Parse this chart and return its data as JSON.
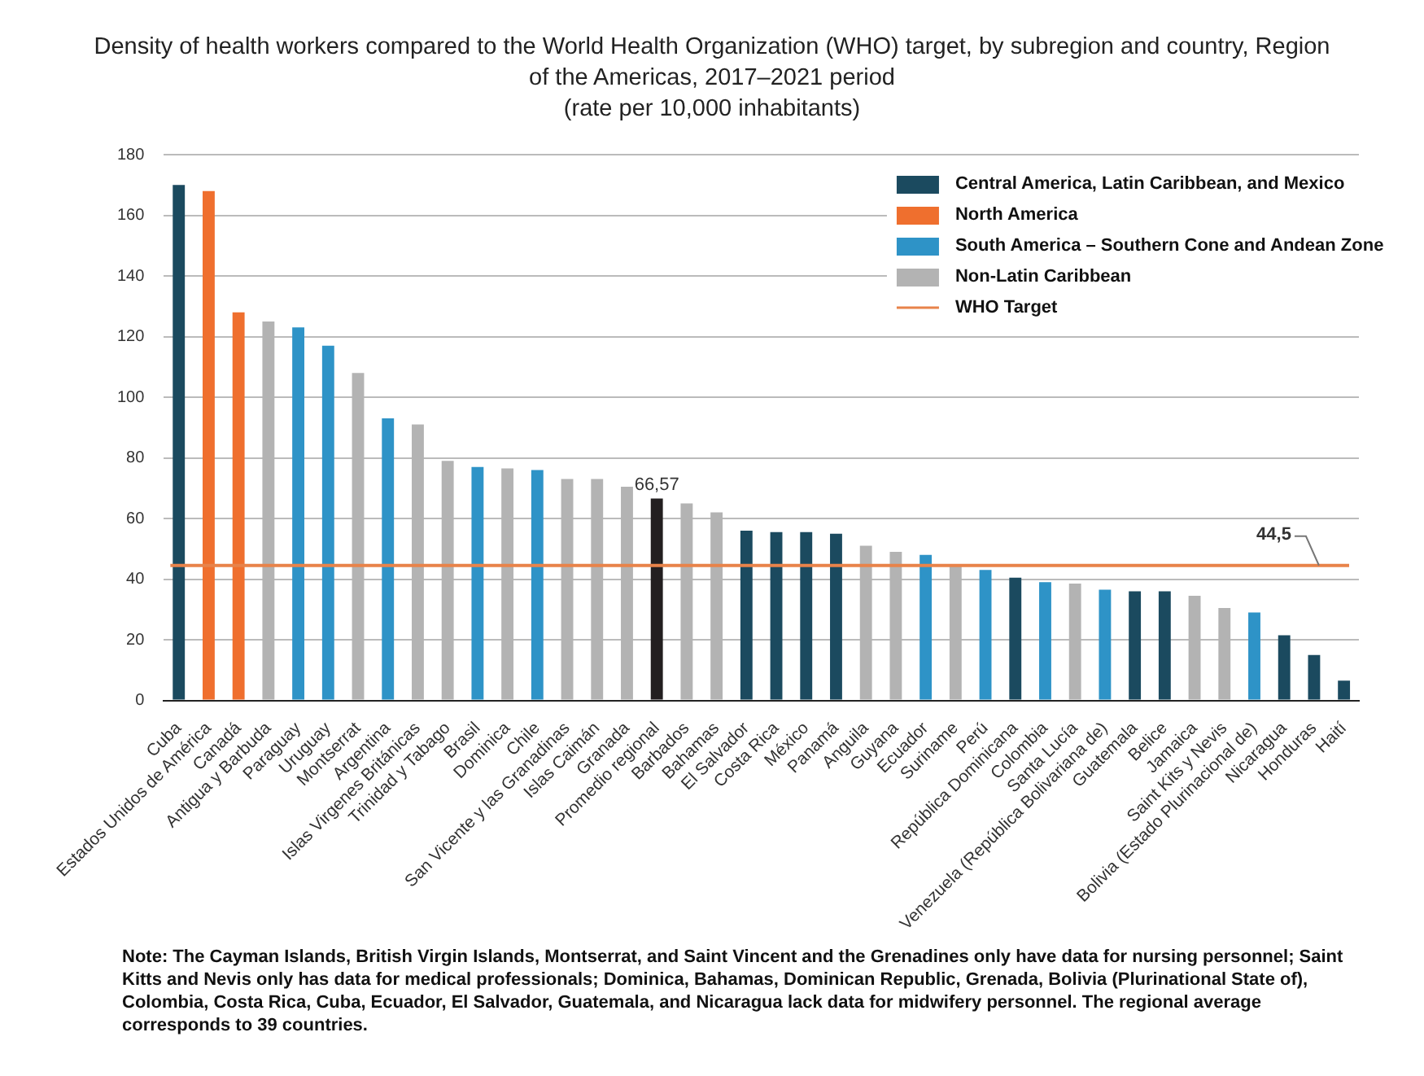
{
  "chart_data": {
    "type": "bar",
    "title": "Density of health workers compared to the World Health Organization (WHO) target, by subregion and country, Region of the Americas, 2017–2021 period",
    "subtitle": "(rate per 10,000 inhabitants)",
    "categories": [
      "Cuba",
      "Estados Unidos de América",
      "Canadá",
      "Antigua y Barbuda",
      "Paraguay",
      "Uruguay",
      "Montserrat",
      "Argentina",
      "Islas Virgenes Británicas",
      "Trinidad y Tabago",
      "Brasil",
      "Dominica",
      "Chile",
      "San Vicente y las Granadinas",
      "Islas Caimán",
      "Granada",
      "Promedio regional",
      "Barbados",
      "Bahamas",
      "El Salvador",
      "Costa Rica",
      "México",
      "Panamá",
      "Anguila",
      "Guyana",
      "Ecuador",
      "Suriname",
      "Perú",
      "República Dominicana",
      "Colombia",
      "Santa Lucía",
      "Venezuela (República Bolivariana de)",
      "Guatemala",
      "Belice",
      "Jamaica",
      "Saint Kits y Nevis",
      "Bolivia (Estado Plurinacional de)",
      "Nicaragua",
      "Honduras",
      "Haití"
    ],
    "series": [
      {
        "name": "Central America, Latin Caribbean, and Mexico",
        "color": "#1b4a5f",
        "values": [
          170,
          null,
          null,
          null,
          null,
          null,
          null,
          null,
          null,
          null,
          null,
          null,
          null,
          null,
          null,
          null,
          null,
          null,
          null,
          56,
          55.5,
          55.5,
          55,
          null,
          null,
          null,
          null,
          null,
          40.5,
          null,
          null,
          null,
          36,
          36,
          null,
          null,
          null,
          21.5,
          15,
          6.5
        ]
      },
      {
        "name": "North America",
        "color": "#ef6f2e",
        "values": [
          null,
          168,
          128,
          null,
          null,
          null,
          null,
          null,
          null,
          null,
          null,
          null,
          null,
          null,
          null,
          null,
          null,
          null,
          null,
          null,
          null,
          null,
          null,
          null,
          null,
          null,
          null,
          null,
          null,
          null,
          null,
          null,
          null,
          null,
          null,
          null,
          null,
          null,
          null,
          null
        ]
      },
      {
        "name": "South America – Southern Cone and Andean Zone",
        "color": "#2e93c7",
        "values": [
          null,
          null,
          null,
          null,
          123,
          117,
          null,
          93,
          null,
          null,
          77,
          null,
          76,
          null,
          null,
          null,
          null,
          null,
          null,
          null,
          null,
          null,
          null,
          null,
          null,
          48,
          null,
          43,
          null,
          39,
          null,
          36.5,
          null,
          null,
          null,
          null,
          29,
          null,
          null,
          null
        ]
      },
      {
        "name": "Non-Latin Caribbean",
        "color": "#b3b3b3",
        "values": [
          null,
          null,
          null,
          125,
          null,
          null,
          108,
          null,
          91,
          79,
          null,
          76.5,
          null,
          73,
          73,
          70.5,
          null,
          65,
          62,
          null,
          null,
          null,
          null,
          51,
          49,
          null,
          44.5,
          null,
          null,
          null,
          38.5,
          null,
          null,
          null,
          34.5,
          30.5,
          null,
          null,
          null,
          null
        ]
      },
      {
        "color": "#231f20",
        "values": [
          null,
          null,
          null,
          null,
          null,
          null,
          null,
          null,
          null,
          null,
          null,
          null,
          null,
          null,
          null,
          null,
          66.57,
          null,
          null,
          null,
          null,
          null,
          null,
          null,
          null,
          null,
          null,
          null,
          null,
          null,
          null,
          null,
          null,
          null,
          null,
          null,
          null,
          null,
          null,
          null
        ],
        "value_labels": [
          null,
          null,
          null,
          null,
          null,
          null,
          null,
          null,
          null,
          null,
          null,
          null,
          null,
          null,
          null,
          null,
          "66,57",
          null,
          null,
          null,
          null,
          null,
          null,
          null,
          null,
          null,
          null,
          null,
          null,
          null,
          null,
          null,
          null,
          null,
          null,
          null,
          null,
          null,
          null,
          null
        ]
      }
    ],
    "ylim": [
      0,
      180
    ],
    "yticks": [
      0,
      20,
      40,
      60,
      80,
      100,
      120,
      140,
      160,
      180
    ],
    "grid": "y",
    "legend": "top right",
    "ref_lines": [
      {
        "axis": "y",
        "value": 44.5,
        "label": "WHO Target",
        "color": "#e8834a"
      }
    ],
    "annotations": [
      {
        "text": "44,5",
        "x": "Honduras",
        "y": 44.5
      },
      "Note: The Cayman Islands, British Virgin Islands, Montserrat, and Saint Vincent and the Grenadines only have data for nursing personnel; Saint Kitts and Nevis only has data for medical professionals; Dominica, Bahamas, Dominican Republic, Grenada, Bolivia (Plurinational State of), Colombia, Costa Rica, Cuba, Ecuador, El Salvador, Guatemala, and Nicaragua lack data for midwifery personnel. The regional average corresponds to 39 countries."
    ]
  }
}
